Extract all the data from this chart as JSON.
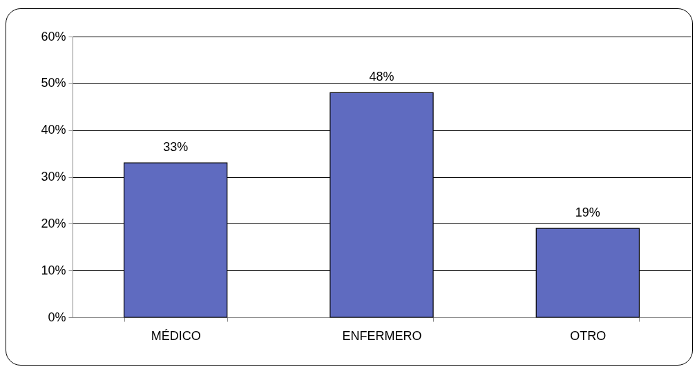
{
  "chart_data": {
    "type": "bar",
    "categories": [
      "MÉDICO",
      "ENFERMERO",
      "OTRO"
    ],
    "values": [
      33,
      48,
      19
    ],
    "value_labels": [
      "33%",
      "48%",
      "19%"
    ],
    "color": "#5f6bc0",
    "ylim": [
      0,
      60
    ],
    "yticks": [
      {
        "value": 0,
        "label": "0%"
      },
      {
        "value": 10,
        "label": "10%"
      },
      {
        "value": 20,
        "label": "20%"
      },
      {
        "value": 30,
        "label": "30%"
      },
      {
        "value": 40,
        "label": "40%"
      },
      {
        "value": 50,
        "label": "50%"
      },
      {
        "value": 60,
        "label": "60%"
      }
    ],
    "grid": "y"
  }
}
